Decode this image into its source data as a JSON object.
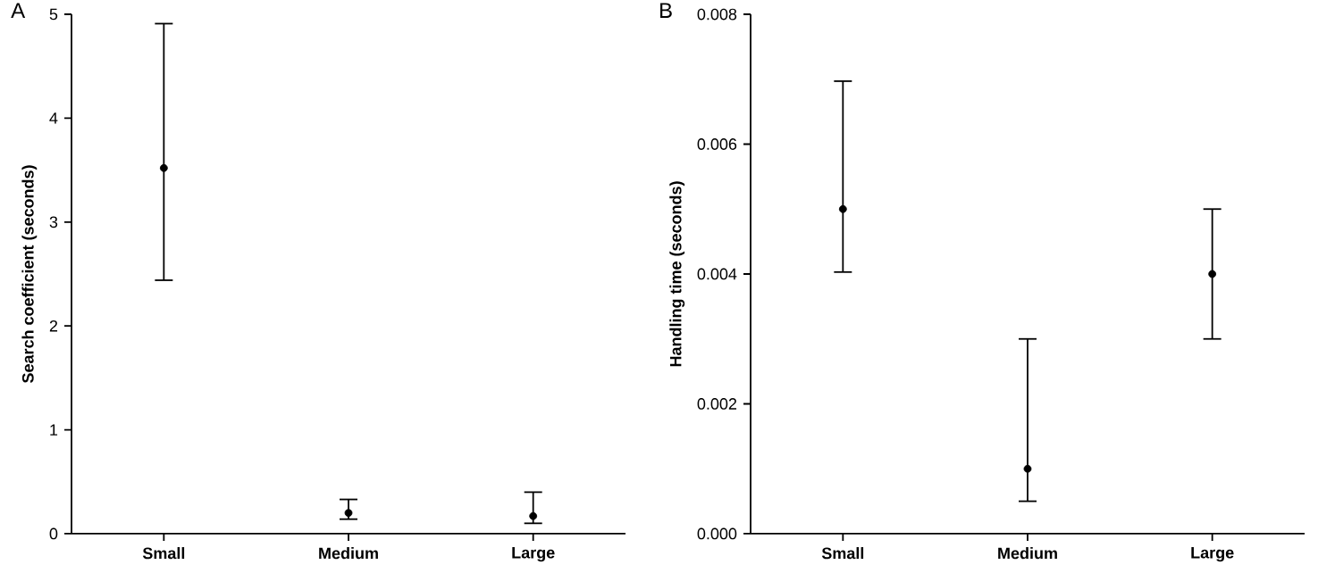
{
  "chart_data": [
    {
      "type": "scatter",
      "ylabel": "Search coefficient (seconds)",
      "annotations": [
        "A"
      ],
      "categories": [
        "Small",
        "Medium",
        "Large"
      ],
      "series": [
        {
          "color": "#000000",
          "values": [
            3.52,
            0.2,
            0.17
          ],
          "errors": [
            [
              2.44,
              4.91
            ],
            [
              0.14,
              0.33
            ],
            [
              0.1,
              0.4
            ]
          ]
        }
      ],
      "ylim": [
        0,
        5
      ],
      "yticks": [
        0,
        1,
        2,
        3,
        4,
        5
      ],
      "marker": "circle"
    },
    {
      "type": "scatter",
      "ylabel": "Handling time (seconds)",
      "annotations": [
        "B"
      ],
      "categories": [
        "Small",
        "Medium",
        "Large"
      ],
      "series": [
        {
          "color": "#000000",
          "values": [
            0.005,
            0.001,
            0.004
          ],
          "errors": [
            [
              0.00403,
              0.00697
            ],
            [
              0.0005,
              0.003
            ],
            [
              0.003,
              0.005
            ]
          ]
        }
      ],
      "ylim": [
        0,
        0.008
      ],
      "yticks": [
        {
          "value": 0,
          "label": "0.000"
        },
        {
          "value": 0.002,
          "label": "0.002"
        },
        {
          "value": 0.004,
          "label": "0.004"
        },
        {
          "value": 0.006,
          "label": "0.006"
        },
        {
          "value": 0.008,
          "label": "0.008"
        }
      ],
      "marker": "circle"
    }
  ]
}
